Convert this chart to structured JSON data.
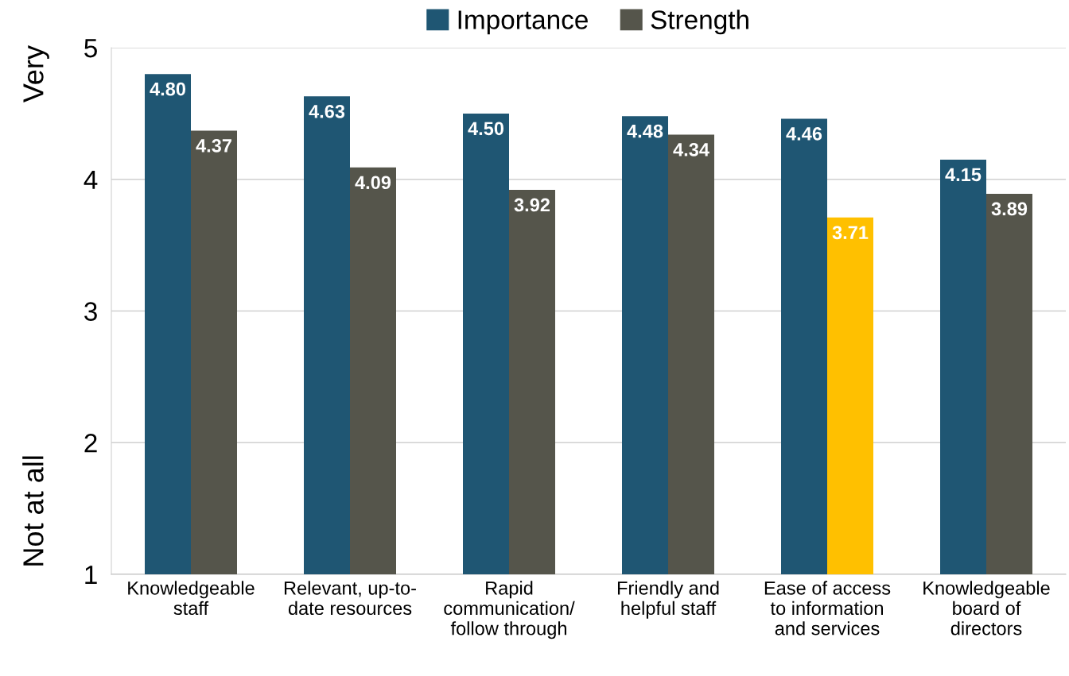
{
  "chart_data": {
    "type": "bar",
    "categories": [
      "Knowledgeable\nstaff",
      "Relevant, up-to-\ndate resources",
      "Rapid\ncommunication/\nfollow through",
      "Friendly and\nhelpful staff",
      "Ease of access\nto information\nand services",
      "Knowledgeable\nboard of\ndirectors"
    ],
    "series": [
      {
        "name": "Importance",
        "color": "#1f5673",
        "values": [
          4.8,
          4.63,
          4.5,
          4.48,
          4.46,
          4.15
        ],
        "value_labels": [
          "4.80",
          "4.63",
          "4.50",
          "4.48",
          "4.46",
          "4.15"
        ]
      },
      {
        "name": "Strength",
        "color": "#55554b",
        "colors": [
          "#55554b",
          "#55554b",
          "#55554b",
          "#55554b",
          "#ffc000",
          "#55554b"
        ],
        "values": [
          4.37,
          4.09,
          3.92,
          4.34,
          3.71,
          3.89
        ],
        "value_labels": [
          "4.37",
          "4.09",
          "3.92",
          "4.34",
          "3.71",
          "3.89"
        ]
      }
    ],
    "ylim": [
      1,
      5
    ],
    "yticks": [
      1,
      2,
      3,
      4,
      5
    ],
    "grid": "y",
    "legend": "top",
    "annotations": [
      "Very",
      "Not at all"
    ]
  }
}
